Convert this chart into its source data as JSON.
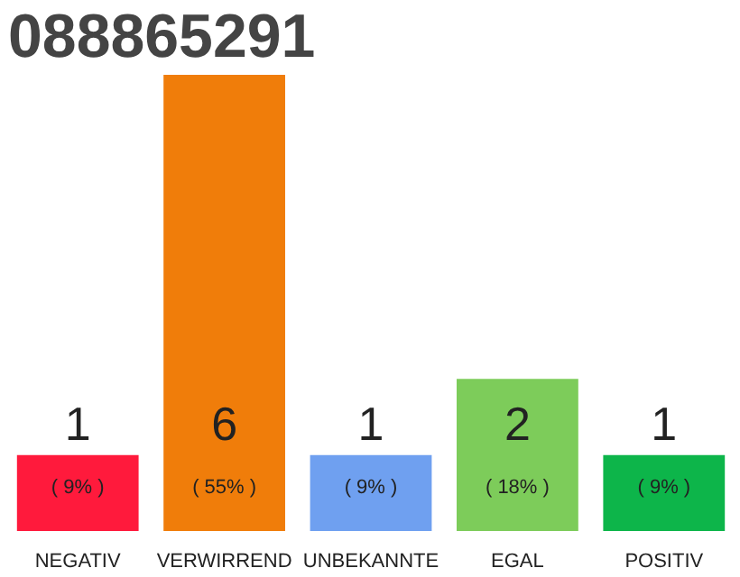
{
  "chart_data": {
    "type": "bar",
    "title": "088865291",
    "categories": [
      "NEGATIV",
      "VERWIRREND",
      "UNBEKANNTE",
      "EGAL",
      "POSITIV"
    ],
    "values": [
      1,
      6,
      1,
      2,
      1
    ],
    "colors": [
      "#ff1a3c",
      "#f07d0a",
      "#6fa0f0",
      "#7dcc5a",
      "#0db54a"
    ],
    "value_labels": [
      "1",
      "6",
      "1",
      "2",
      "1"
    ],
    "annotations": [
      "( 9% )",
      "( 55% )",
      "( 9% )",
      "( 18% )",
      "( 9% )"
    ]
  }
}
